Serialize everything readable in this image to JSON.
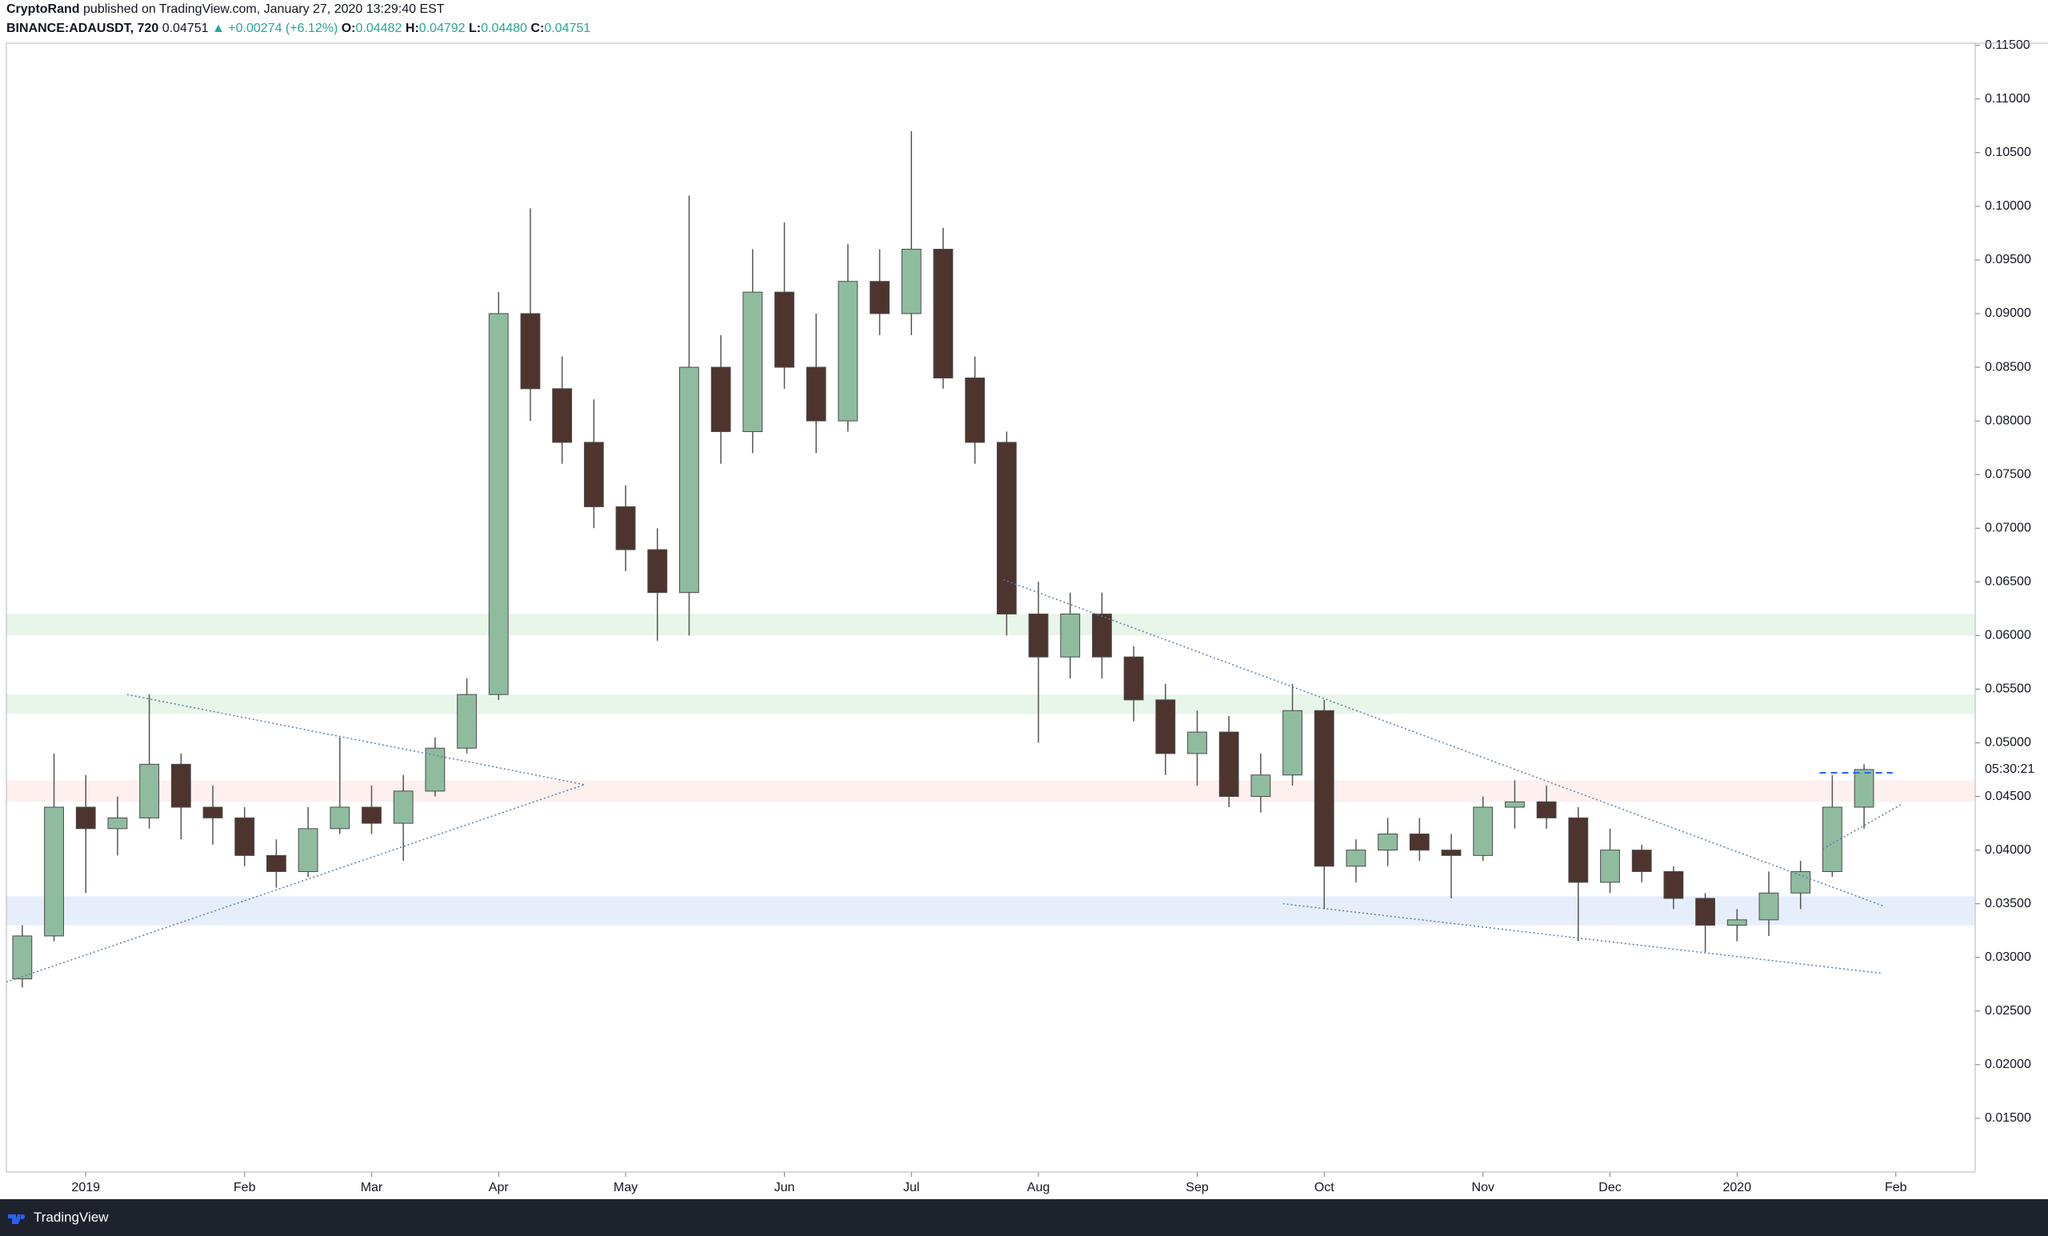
{
  "header": {
    "author": "CryptoRand",
    "published": "published on TradingView.com, January 27, 2020 13:29:40 EST",
    "symbol": "BINANCE:ADAUSDT, 720",
    "last": "0.04751",
    "change": "▲ +0.00274 (+6.12%)",
    "o_label": "O:",
    "o": "0.04482",
    "h_label": "H:",
    "h": "0.04792",
    "l_label": "L:",
    "l": "0.04480",
    "c_label": "C:",
    "c": "0.04751"
  },
  "footer": {
    "brand": "TradingView"
  },
  "chart_data": {
    "type": "candlestick",
    "categories": [
      null,
      null,
      "2019",
      null,
      null,
      null,
      null,
      "Feb",
      null,
      null,
      null,
      "Mar",
      null,
      null,
      null,
      "Apr",
      null,
      null,
      null,
      "May",
      null,
      null,
      null,
      null,
      "Jun",
      null,
      null,
      null,
      "Jul",
      null,
      null,
      null,
      "Aug",
      null,
      null,
      null,
      null,
      "Sep",
      null,
      null,
      null,
      "Oct",
      null,
      null,
      null,
      null,
      "Nov",
      null,
      null,
      null,
      "Dec",
      null,
      null,
      null,
      "2020",
      null,
      null,
      null,
      null,
      "Feb",
      null,
      null
    ],
    "open": [
      0.028,
      0.032,
      0.044,
      0.042,
      0.043,
      0.048,
      0.044,
      0.043,
      0.0395,
      0.038,
      0.042,
      0.044,
      0.0425,
      0.0455,
      0.0495,
      0.0545,
      0.09,
      0.083,
      0.078,
      0.072,
      0.068,
      0.064,
      0.085,
      0.079,
      0.092,
      0.085,
      0.08,
      0.093,
      0.09,
      0.096,
      0.084,
      0.078,
      0.062,
      0.058,
      0.062,
      0.058,
      0.054,
      0.049,
      0.051,
      0.045,
      0.047,
      0.053,
      0.0385,
      0.04,
      0.0415,
      0.04,
      0.0395,
      0.044,
      0.0445,
      0.043,
      0.037,
      0.04,
      0.038,
      0.0355,
      0.033,
      0.0335,
      0.036,
      0.038,
      0.044,
      null,
      null,
      null
    ],
    "high": [
      0.033,
      0.049,
      0.047,
      0.045,
      0.0545,
      0.049,
      0.046,
      0.044,
      0.041,
      0.044,
      0.0505,
      0.046,
      0.047,
      0.0505,
      0.056,
      0.092,
      0.0998,
      0.086,
      0.082,
      0.074,
      0.07,
      0.101,
      0.088,
      0.096,
      0.0985,
      0.09,
      0.0965,
      0.096,
      0.107,
      0.098,
      0.086,
      0.079,
      0.065,
      0.064,
      0.064,
      0.059,
      0.0555,
      0.053,
      0.0525,
      0.049,
      0.0555,
      0.054,
      0.041,
      0.043,
      0.043,
      0.0415,
      0.045,
      0.0465,
      0.046,
      0.044,
      0.042,
      0.0405,
      0.0385,
      0.036,
      0.0345,
      0.038,
      0.039,
      0.047,
      0.048,
      null,
      null,
      null
    ],
    "low": [
      0.0272,
      0.0315,
      0.036,
      0.0395,
      0.042,
      0.041,
      0.0405,
      0.0385,
      0.0365,
      0.0375,
      0.0415,
      0.0415,
      0.039,
      0.045,
      0.049,
      0.054,
      0.08,
      0.076,
      0.07,
      0.066,
      0.0595,
      0.06,
      0.076,
      0.077,
      0.083,
      0.077,
      0.079,
      0.088,
      0.088,
      0.083,
      0.076,
      0.06,
      0.05,
      0.056,
      0.056,
      0.052,
      0.047,
      0.046,
      0.044,
      0.0435,
      0.046,
      0.0345,
      0.037,
      0.0385,
      0.039,
      0.0355,
      0.039,
      0.042,
      0.042,
      0.0315,
      0.036,
      0.037,
      0.0345,
      0.0305,
      0.0315,
      0.032,
      0.0345,
      0.0375,
      0.042,
      null,
      null,
      null
    ],
    "close": [
      0.032,
      0.044,
      0.042,
      0.043,
      0.048,
      0.044,
      0.043,
      0.0395,
      0.038,
      0.042,
      0.044,
      0.0425,
      0.0455,
      0.0495,
      0.0545,
      0.09,
      0.083,
      0.078,
      0.072,
      0.068,
      0.064,
      0.085,
      0.079,
      0.092,
      0.085,
      0.08,
      0.093,
      0.09,
      0.096,
      0.084,
      0.078,
      0.062,
      0.058,
      0.062,
      0.058,
      0.054,
      0.049,
      0.051,
      0.045,
      0.047,
      0.053,
      0.0385,
      0.04,
      0.0415,
      0.04,
      0.0395,
      0.044,
      0.0445,
      0.043,
      0.037,
      0.04,
      0.038,
      0.0355,
      0.033,
      0.0335,
      0.036,
      0.038,
      0.044,
      0.04751,
      null,
      null,
      null
    ],
    "up_color": "#8fbc9f",
    "down_color": "#4e342e",
    "ylim": [
      0.01,
      0.1152
    ],
    "yticks": [
      {
        "value": 0.115,
        "label": "0.11500"
      },
      {
        "value": 0.11,
        "label": "0.11000"
      },
      {
        "value": 0.105,
        "label": "0.10500"
      },
      {
        "value": 0.1,
        "label": "0.10000"
      },
      {
        "value": 0.095,
        "label": "0.09500"
      },
      {
        "value": 0.09,
        "label": "0.09000"
      },
      {
        "value": 0.085,
        "label": "0.08500"
      },
      {
        "value": 0.08,
        "label": "0.08000"
      },
      {
        "value": 0.075,
        "label": "0.07500"
      },
      {
        "value": 0.07,
        "label": "0.07000"
      },
      {
        "value": 0.065,
        "label": "0.06500"
      },
      {
        "value": 0.06,
        "label": "0.06000"
      },
      {
        "value": 0.055,
        "label": "0.05500"
      },
      {
        "value": 0.05,
        "label": "0.05000"
      },
      {
        "value": 0.045,
        "label": "0.04500"
      },
      {
        "value": 0.04,
        "label": "0.04000"
      },
      {
        "value": 0.035,
        "label": "0.03500"
      },
      {
        "value": 0.03,
        "label": "0.03000"
      },
      {
        "value": 0.025,
        "label": "0.02500"
      },
      {
        "value": 0.02,
        "label": "0.02000"
      },
      {
        "value": 0.015,
        "label": "0.01500"
      }
    ],
    "countdown": "05:30:21",
    "zones": [
      {
        "from": 0.06,
        "to": 0.062,
        "color": "#e8f5e9"
      },
      {
        "from": 0.0527,
        "to": 0.0545,
        "color": "#e8f5e9"
      },
      {
        "from": 0.0445,
        "to": 0.0465,
        "color": "#fdf0ee"
      },
      {
        "from": 0.033,
        "to": 0.0357,
        "color": "#e6eefb"
      }
    ],
    "trendlines": [
      {
        "x": [
          3.3,
          17.7
        ],
        "y": [
          0.0545,
          0.0461
        ]
      },
      {
        "x": [
          -0.5,
          17.7
        ],
        "y": [
          0.0277,
          0.0461
        ]
      },
      {
        "x": [
          30.9,
          58.6
        ],
        "y": [
          0.0652,
          0.0348
        ]
      },
      {
        "x": [
          39.7,
          58.6
        ],
        "y": [
          0.035,
          0.0285
        ]
      },
      {
        "x": [
          56.7,
          59.2
        ],
        "y": [
          0.0401,
          0.0443
        ]
      },
      {
        "x": [
          56.6,
          58.9
        ],
        "y": [
          0.0472,
          0.0472
        ],
        "dashed": true
      }
    ]
  }
}
